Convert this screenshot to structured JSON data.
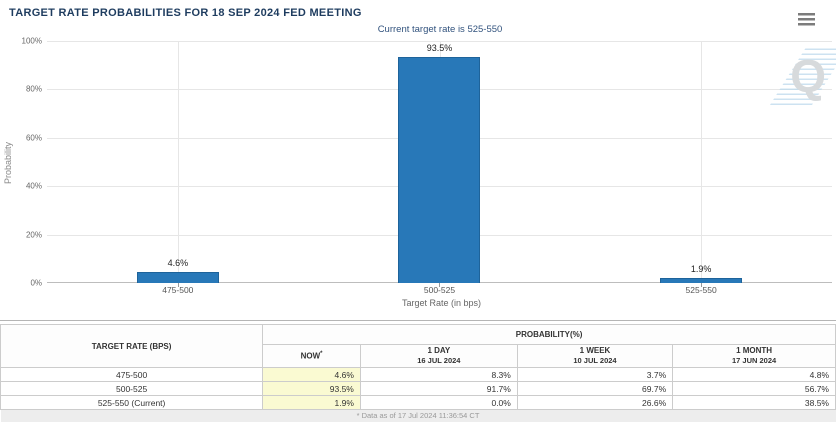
{
  "header": {
    "title": "TARGET RATE PROBABILITIES FOR 18 SEP 2024 FED MEETING"
  },
  "chart_data": {
    "type": "bar",
    "title": "Current target rate is 525-550",
    "categories": [
      "475-500",
      "500-525",
      "525-550"
    ],
    "values": [
      4.6,
      93.5,
      1.9
    ],
    "value_labels": [
      "4.6%",
      "93.5%",
      "1.9%"
    ],
    "xlabel": "Target Rate (in bps)",
    "ylabel": "Probability",
    "ylim": [
      0,
      100
    ],
    "yticks": [
      "0%",
      "20%",
      "40%",
      "60%",
      "80%",
      "100%"
    ],
    "grid": true,
    "legend": "none",
    "bar_color": "#2878b8"
  },
  "table": {
    "col1_header": "TARGET RATE (BPS)",
    "group_header": "PROBABILITY(%)",
    "columns": [
      {
        "label": "NOW",
        "sup": "*",
        "sub": ""
      },
      {
        "label": "1 DAY",
        "sub": "16 JUL 2024"
      },
      {
        "label": "1 WEEK",
        "sub": "10 JUL 2024"
      },
      {
        "label": "1 MONTH",
        "sub": "17 JUN 2024"
      }
    ],
    "rows": [
      {
        "rate": "475-500",
        "values": [
          "4.6%",
          "8.3%",
          "3.7%",
          "4.8%"
        ]
      },
      {
        "rate": "500-525",
        "values": [
          "93.5%",
          "91.7%",
          "69.7%",
          "56.7%"
        ]
      },
      {
        "rate": "525-550 (Current)",
        "values": [
          "1.9%",
          "0.0%",
          "26.6%",
          "38.5%"
        ]
      }
    ],
    "footnote": "* Data as of 17 Jul 2024 11:36:54 CT"
  },
  "colors": {
    "title": "#1e3c5f",
    "subtitle": "#31527d",
    "bar": "#2878b8",
    "now_highlight": "#fafad2",
    "grid": "#e6e6e6"
  }
}
